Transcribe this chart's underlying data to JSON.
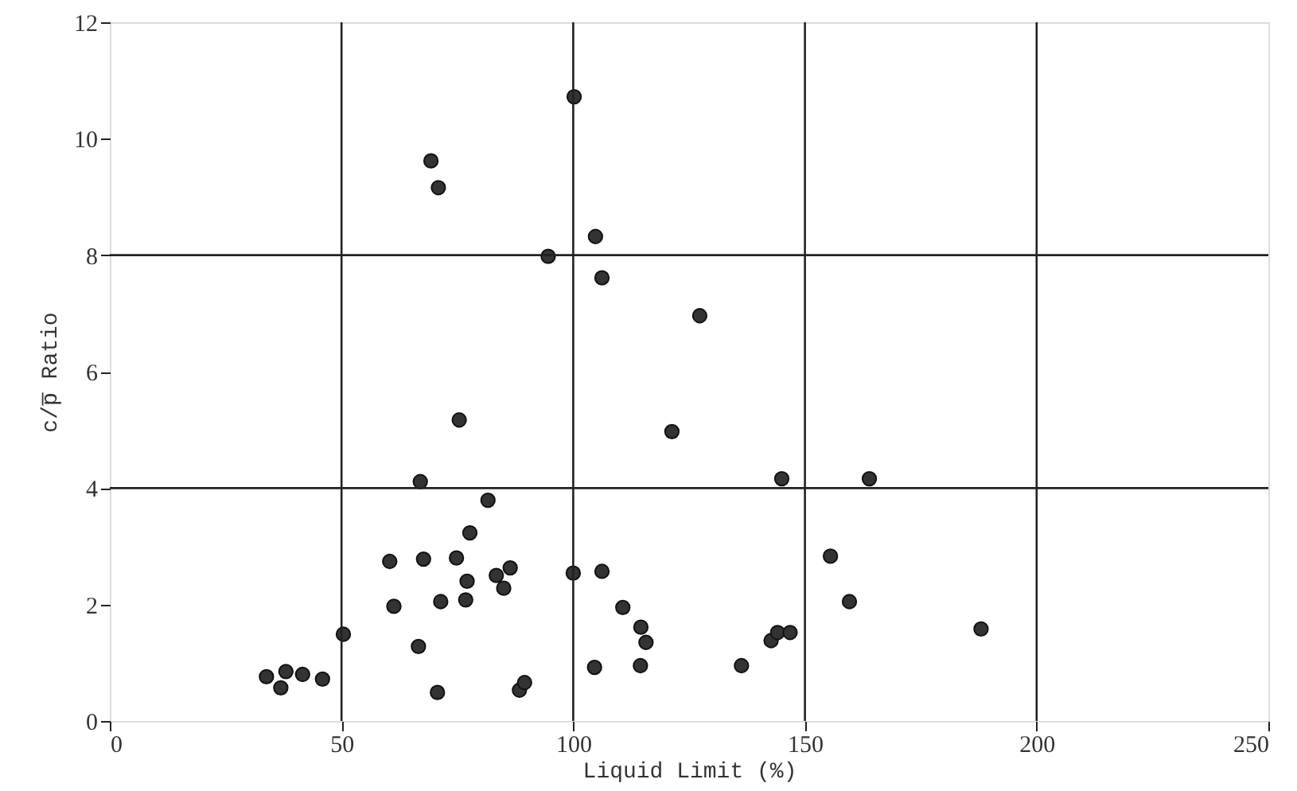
{
  "chart_data": {
    "type": "scatter",
    "xlabel": "Liquid Limit (%)",
    "ylabel": "c/p̅ Ratio",
    "xlim": [
      0,
      250
    ],
    "xticks": [
      0,
      50,
      100,
      150,
      200,
      250
    ],
    "ylim": [
      0,
      12
    ],
    "yticks": [
      0,
      2,
      4,
      6,
      8,
      10,
      12
    ],
    "marker": "circle",
    "grid": false,
    "ref_lines": [
      {
        "axis": "x",
        "value": 50,
        "color": "#222222"
      },
      {
        "axis": "x",
        "value": 100,
        "color": "#222222"
      },
      {
        "axis": "x",
        "value": 150,
        "color": "#222222"
      },
      {
        "axis": "x",
        "value": 200,
        "color": "#222222"
      },
      {
        "axis": "y",
        "value": 4,
        "color": "#222222"
      },
      {
        "axis": "y",
        "value": 8,
        "color": "#222222"
      }
    ],
    "x": [
      33.8,
      36.9,
      38.0,
      41.6,
      45.9,
      50.4,
      60.4,
      61.3,
      66.6,
      67.0,
      67.7,
      69.3,
      70.9,
      70.7,
      71.4,
      74.8,
      75.4,
      76.8,
      77.1,
      77.7,
      81.6,
      83.4,
      85.0,
      86.4,
      88.4,
      89.5,
      94.6,
      100.0,
      100.2,
      104.6,
      104.8,
      106.2,
      106.2,
      110.7,
      114.5,
      114.6,
      115.7,
      121.3,
      127.3,
      136.3,
      142.7,
      144.1,
      145.0,
      146.8,
      155.5,
      159.6,
      163.9,
      188.0
    ],
    "series": [
      {
        "color": "#333333",
        "values": [
          0.76,
          0.57,
          0.85,
          0.8,
          0.72,
          1.49,
          2.74,
          1.97,
          1.28,
          4.11,
          2.78,
          9.62,
          9.16,
          0.49,
          2.05,
          2.8,
          5.17,
          2.08,
          2.4,
          3.23,
          3.79,
          2.5,
          2.28,
          2.63,
          0.53,
          0.66,
          7.98,
          2.54,
          10.72,
          0.92,
          8.32,
          7.61,
          2.57,
          1.95,
          0.95,
          1.61,
          1.35,
          4.97,
          6.96,
          0.95,
          1.38,
          1.52,
          4.16,
          1.52,
          2.83,
          2.05,
          4.16,
          1.58
        ]
      }
    ]
  }
}
